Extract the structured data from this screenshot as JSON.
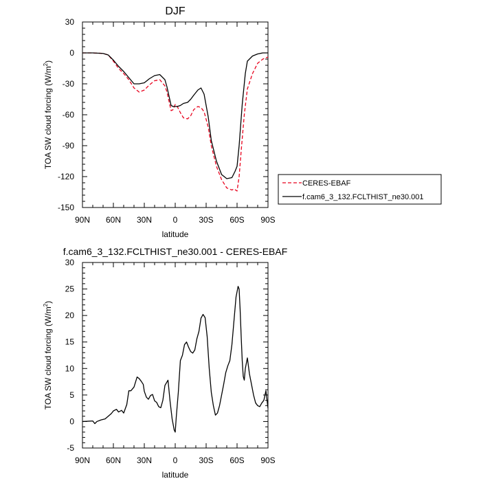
{
  "chart_data": [
    {
      "type": "line",
      "title": "DJF",
      "xlabel": "latitude",
      "ylabel": "TOA SW cloud forcing (W/m",
      "ylabel_sup": "2",
      "ylabel_end": ")",
      "xlim": [
        90,
        -90
      ],
      "ylim": [
        -150,
        30
      ],
      "x_ticks": [
        90,
        60,
        30,
        0,
        -30,
        -60,
        -90
      ],
      "x_tick_labels": [
        "90N",
        "60N",
        "30N",
        "0",
        "30S",
        "60S",
        "90S"
      ],
      "y_ticks": [
        30,
        0,
        -30,
        -60,
        -90,
        -120,
        -150
      ],
      "y_tick_labels": [
        "30",
        "0",
        "-30",
        "-60",
        "-90",
        "-120",
        "-150"
      ],
      "legend": {
        "placement": "outside-right-bottom"
      },
      "series": [
        {
          "name": "CERES-EBAF",
          "color": "#e8001c",
          "dash": "dashed",
          "x": [
            90,
            80,
            70,
            65,
            60,
            55,
            50,
            45,
            40,
            35,
            30,
            25,
            20,
            15,
            10,
            8,
            6,
            4,
            2,
            0,
            -2,
            -5,
            -8,
            -12,
            -15,
            -18,
            -22,
            -25,
            -28,
            -32,
            -35,
            -40,
            -45,
            -50,
            -55,
            -57,
            -60,
            -62,
            -64,
            -67,
            -70,
            -75,
            -80,
            -85,
            -90
          ],
          "values": [
            0,
            0,
            -0.5,
            -2,
            -8,
            -15,
            -20,
            -26,
            -34,
            -38,
            -36,
            -31,
            -27,
            -26,
            -32,
            -38,
            -47,
            -56,
            -55,
            -50,
            -52,
            -58,
            -63,
            -64,
            -61,
            -55,
            -52,
            -53,
            -57,
            -72,
            -90,
            -110,
            -123,
            -131,
            -133,
            -132,
            -134,
            -120,
            -95,
            -60,
            -35,
            -20,
            -10,
            -6,
            -4
          ]
        },
        {
          "name": "f.cam6_3_132.FCLTHIST_ne30.001",
          "color": "#000000",
          "dash": "solid",
          "x": [
            90,
            80,
            70,
            65,
            60,
            55,
            50,
            45,
            40,
            35,
            30,
            25,
            20,
            15,
            10,
            8,
            6,
            4,
            2,
            0,
            -2,
            -5,
            -8,
            -12,
            -15,
            -18,
            -22,
            -25,
            -28,
            -32,
            -35,
            -40,
            -45,
            -50,
            -55,
            -58,
            -60,
            -62,
            -65,
            -68,
            -70,
            -75,
            -80,
            -85,
            -90
          ],
          "values": [
            0,
            0,
            -0.5,
            -2,
            -7,
            -13,
            -18,
            -24,
            -30,
            -30,
            -29,
            -25,
            -22,
            -21,
            -26,
            -33,
            -42,
            -51,
            -52,
            -52,
            -52,
            -51,
            -49,
            -48,
            -45,
            -41,
            -36,
            -34,
            -40,
            -62,
            -85,
            -105,
            -118,
            -122,
            -121,
            -115,
            -110,
            -90,
            -50,
            -20,
            -8,
            -3,
            -1,
            0,
            0
          ]
        }
      ]
    },
    {
      "type": "line",
      "title": "f.cam6_3_132.FCLTHIST_ne30.001 - CERES-EBAF",
      "xlabel": "latitude",
      "ylabel": "TOA SW cloud forcing (W/m",
      "ylabel_sup": "2",
      "ylabel_end": ")",
      "xlim": [
        90,
        -90
      ],
      "ylim": [
        -5,
        30
      ],
      "x_ticks": [
        90,
        60,
        30,
        0,
        -30,
        -60,
        -90
      ],
      "x_tick_labels": [
        "90N",
        "60N",
        "30N",
        "0",
        "30S",
        "60S",
        "90S"
      ],
      "y_ticks": [
        30,
        25,
        20,
        15,
        10,
        5,
        0,
        -5
      ],
      "y_tick_labels": [
        "30",
        "25",
        "20",
        "15",
        "10",
        "5",
        "0",
        "-5"
      ],
      "series": [
        {
          "color": "#000000",
          "dash": "solid",
          "x": [
            90,
            80,
            78,
            76,
            72,
            68,
            65,
            62,
            60,
            57,
            55,
            52,
            50,
            47,
            45,
            43,
            40,
            37,
            35,
            33,
            31,
            30,
            28,
            26,
            24,
            22,
            20,
            18,
            16,
            14,
            12,
            10,
            7,
            5,
            3,
            1,
            0,
            -1,
            -3,
            -5,
            -7,
            -9,
            -11,
            -13,
            -15,
            -17,
            -19,
            -21,
            -23,
            -25,
            -27,
            -29,
            -31,
            -33,
            -35,
            -37,
            -39,
            -41,
            -43,
            -45,
            -47,
            -49,
            -51,
            -53,
            -55,
            -57,
            -59,
            -61,
            -62,
            -63,
            -64,
            -65,
            -66,
            -67,
            -68,
            -70,
            -72,
            -74,
            -76,
            -78,
            -80,
            -82,
            -84,
            -86,
            -88,
            -90
          ],
          "values": [
            0,
            0.1,
            -0.4,
            0,
            0.3,
            0.5,
            1.0,
            1.5,
            2.0,
            2.3,
            1.8,
            2.1,
            1.6,
            3.2,
            5.8,
            5.8,
            6.5,
            8.4,
            8.1,
            7.6,
            7.0,
            5.7,
            4.6,
            4.2,
            4.9,
            5.1,
            3.9,
            3.6,
            2.8,
            2.6,
            4.0,
            6.8,
            7.8,
            3.8,
            0.5,
            -1.6,
            -2.0,
            0.8,
            5.5,
            11.5,
            12.5,
            14.5,
            15.0,
            14.0,
            13.2,
            12.9,
            13.5,
            15.6,
            17.0,
            19.5,
            20.2,
            19.6,
            16.0,
            10.0,
            5.5,
            3.0,
            1.2,
            1.6,
            3.0,
            5.0,
            7.0,
            9.2,
            10.5,
            11.5,
            14.5,
            19.0,
            23.5,
            25.5,
            25.0,
            21.0,
            16.0,
            11.5,
            8.5,
            7.8,
            10.0,
            12.0,
            9.0,
            7.0,
            5.0,
            3.5,
            3.0,
            2.8,
            3.5,
            4.0,
            5.8,
            2.5
          ]
        }
      ]
    }
  ]
}
